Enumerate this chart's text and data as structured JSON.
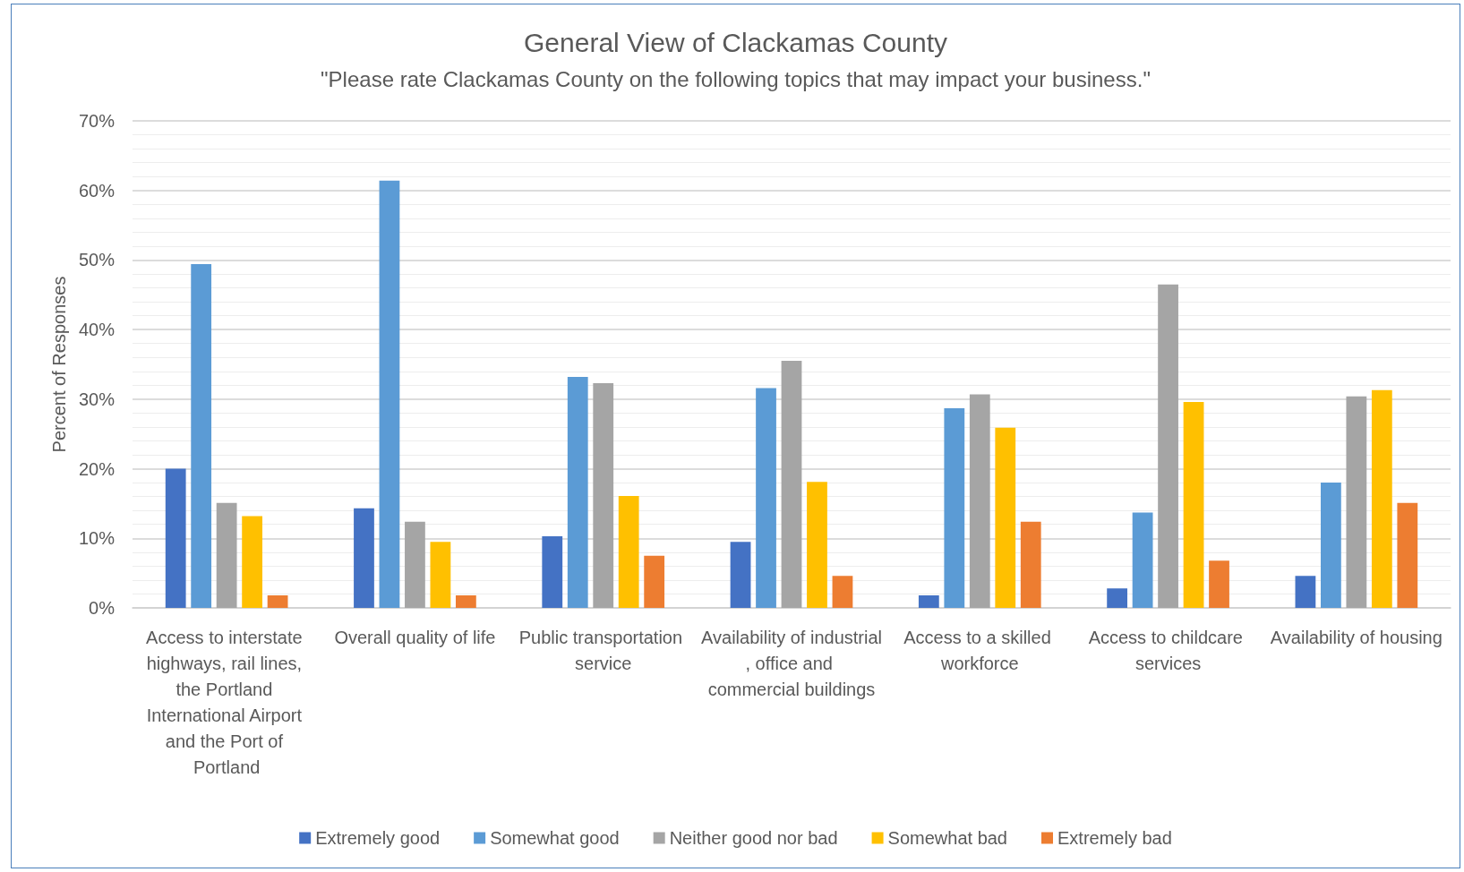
{
  "chart_data": {
    "type": "bar",
    "title": "General View of Clackamas County",
    "subtitle": "\"Please rate Clackamas County on the following topics that may impact your business.\"",
    "ylabel": "Percent of Responses",
    "categories": [
      "Access to interstate highways, rail lines, the Portland International Airport and the Port of Portland",
      "Overall quality of life",
      "Public transportation service",
      "Availability of industrial, office and commercial buildings",
      "Access to a skilled workforce",
      "Access to childcare services",
      "Availability of housing"
    ],
    "series": [
      {
        "name": "Extremely good",
        "color": "#4472c4",
        "values": [
          20,
          14.3,
          10.3,
          9.5,
          1.8,
          2.8,
          4.6
        ]
      },
      {
        "name": "Somewhat good",
        "color": "#5b9bd5",
        "values": [
          49.4,
          61.4,
          33.2,
          31.6,
          28.7,
          13.7,
          18
        ]
      },
      {
        "name": "Neither good nor bad",
        "color": "#a5a5a5",
        "values": [
          15.1,
          12.4,
          32.3,
          35.5,
          30.7,
          46.5,
          30.4
        ]
      },
      {
        "name": "Somewhat bad",
        "color": "#ffc000",
        "values": [
          13.2,
          9.5,
          16.1,
          18.1,
          25.9,
          29.6,
          31.3
        ]
      },
      {
        "name": "Extremely bad",
        "color": "#ed7d31",
        "values": [
          1.8,
          1.8,
          7.5,
          4.6,
          12.4,
          6.8,
          15.1
        ]
      }
    ],
    "ylim": [
      0,
      70
    ],
    "yticks": [
      {
        "value": 0,
        "label": "0%"
      },
      {
        "value": 10,
        "label": "10%"
      },
      {
        "value": 20,
        "label": "20%"
      },
      {
        "value": 30,
        "label": "30%"
      },
      {
        "value": 40,
        "label": "40%"
      },
      {
        "value": 50,
        "label": "50%"
      },
      {
        "value": 60,
        "label": "60%"
      },
      {
        "value": 70,
        "label": "70%"
      }
    ],
    "grid": "y",
    "legend": "bottom"
  }
}
